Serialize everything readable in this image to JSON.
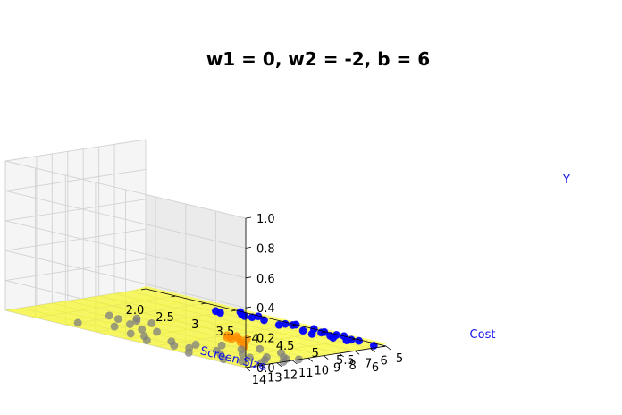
{
  "chart_data": {
    "type": "scatter",
    "subtype": "3d-scatter-with-surface",
    "title": "w1 = 0, w2 = -2, b = 6",
    "xlabel": "Screen Size",
    "ylabel": "Cost",
    "zlabel": "Y",
    "xlim": [
      2.0,
      6.0
    ],
    "ylim": [
      5,
      14
    ],
    "zlim": [
      0.0,
      1.0
    ],
    "x_ticks": [
      "2.0",
      "2.5",
      "3",
      "3.5",
      "4",
      "4.5",
      "5",
      "5.5",
      "6"
    ],
    "y_ticks": [
      "5",
      "6",
      "7",
      "8",
      "9",
      "10",
      "11",
      "12",
      "13",
      "14"
    ],
    "z_ticks": [
      "0.0",
      "0.2",
      "0.4",
      "0.6",
      "0.8",
      "1.0"
    ],
    "grid": true,
    "surface": {
      "model": "sigmoid",
      "w1": 0,
      "w2": -2,
      "b": 6,
      "color": "#ffff00"
    },
    "series": [
      {
        "color": "#0000ff",
        "marker": "circle",
        "points": [
          {
            "x": 3.4,
            "y": 5.9,
            "z": 0
          },
          {
            "x": 3.5,
            "y": 6.0,
            "z": 0
          },
          {
            "x": 3.8,
            "y": 5.6,
            "z": 0
          },
          {
            "x": 3.7,
            "y": 5.4,
            "z": 0
          },
          {
            "x": 3.9,
            "y": 5.5,
            "z": 0
          },
          {
            "x": 3.6,
            "y": 5.1,
            "z": 0
          },
          {
            "x": 3.9,
            "y": 5.1,
            "z": 0
          },
          {
            "x": 4.1,
            "y": 5.5,
            "z": 0
          },
          {
            "x": 4.4,
            "y": 5.3,
            "z": 0
          },
          {
            "x": 4.4,
            "y": 5.7,
            "z": 0
          },
          {
            "x": 4.5,
            "y": 5.0,
            "z": 0
          },
          {
            "x": 4.5,
            "y": 5.2,
            "z": 0
          },
          {
            "x": 4.8,
            "y": 5.7,
            "z": 0
          },
          {
            "x": 4.8,
            "y": 5.0,
            "z": 0
          },
          {
            "x": 5.0,
            "y": 5.3,
            "z": 0
          },
          {
            "x": 5.0,
            "y": 5.9,
            "z": 0
          },
          {
            "x": 5.0,
            "y": 5.1,
            "z": 0
          },
          {
            "x": 5.2,
            "y": 5.1,
            "z": 0
          },
          {
            "x": 5.2,
            "y": 5.5,
            "z": 0
          },
          {
            "x": 5.3,
            "y": 5.7,
            "z": 0
          },
          {
            "x": 5.3,
            "y": 5.0,
            "z": 0
          },
          {
            "x": 5.5,
            "y": 5.6,
            "z": 0
          },
          {
            "x": 5.5,
            "y": 5.3,
            "z": 0
          },
          {
            "x": 5.6,
            "y": 5.2,
            "z": 0
          },
          {
            "x": 5.9,
            "y": 5.4,
            "z": 0
          }
        ]
      },
      {
        "color": "#ff8c00",
        "marker": "circle",
        "points": [
          {
            "x": 4.5,
            "y": 9.4,
            "z": 0
          },
          {
            "x": 4.6,
            "y": 9.6,
            "z": 0
          },
          {
            "x": 4.6,
            "y": 9.2,
            "z": 0
          },
          {
            "x": 4.7,
            "y": 9.5,
            "z": 0
          },
          {
            "x": 4.7,
            "y": 9.9,
            "z": 0
          },
          {
            "x": 4.8,
            "y": 9.3,
            "z": 0
          },
          {
            "x": 4.8,
            "y": 9.7,
            "z": 0
          },
          {
            "x": 4.9,
            "y": 10.1,
            "z": 0
          },
          {
            "x": 5.0,
            "y": 10.3,
            "z": 0
          },
          {
            "x": 5.1,
            "y": 10.6,
            "z": 0
          },
          {
            "x": 4.6,
            "y": 9.8,
            "z": 0
          }
        ]
      },
      {
        "color": "#7f7f7f",
        "marker": "circle",
        "points": [
          {
            "x": 2.9,
            "y": 10.8,
            "z": 0
          },
          {
            "x": 3.1,
            "y": 11.0,
            "z": 0
          },
          {
            "x": 3.2,
            "y": 10.2,
            "z": 0
          },
          {
            "x": 3.3,
            "y": 10.6,
            "z": 0
          },
          {
            "x": 3.4,
            "y": 11.4,
            "z": 0
          },
          {
            "x": 3.5,
            "y": 10.4,
            "z": 0
          },
          {
            "x": 3.4,
            "y": 12.4,
            "z": 0
          },
          {
            "x": 3.7,
            "y": 11.8,
            "z": 0
          },
          {
            "x": 3.8,
            "y": 12.9,
            "z": 0
          },
          {
            "x": 3.9,
            "y": 11.6,
            "z": 0
          },
          {
            "x": 4.0,
            "y": 12.8,
            "z": 0
          },
          {
            "x": 4.2,
            "y": 13.4,
            "z": 0
          },
          {
            "x": 4.4,
            "y": 12.6,
            "z": 0
          },
          {
            "x": 4.6,
            "y": 13.2,
            "z": 0
          },
          {
            "x": 4.7,
            "y": 12.2,
            "z": 0
          },
          {
            "x": 4.8,
            "y": 13.0,
            "z": 0
          },
          {
            "x": 5.0,
            "y": 13.8,
            "z": 0
          },
          {
            "x": 5.1,
            "y": 12.4,
            "z": 0
          },
          {
            "x": 5.2,
            "y": 11.2,
            "z": 0
          },
          {
            "x": 5.3,
            "y": 12.9,
            "z": 0
          },
          {
            "x": 5.4,
            "y": 11.9,
            "z": 0
          },
          {
            "x": 5.5,
            "y": 13.5,
            "z": 0
          },
          {
            "x": 5.6,
            "y": 12.2,
            "z": 0
          },
          {
            "x": 5.7,
            "y": 11.5,
            "z": 0
          },
          {
            "x": 5.7,
            "y": 13.1,
            "z": 0
          },
          {
            "x": 5.8,
            "y": 12.0,
            "z": 0
          },
          {
            "x": 5.8,
            "y": 10.8,
            "z": 0
          },
          {
            "x": 5.9,
            "y": 11.0,
            "z": 0
          },
          {
            "x": 5.9,
            "y": 12.6,
            "z": 0
          },
          {
            "x": 6.0,
            "y": 11.6,
            "z": 0
          },
          {
            "x": 6.0,
            "y": 10.6,
            "z": 0
          },
          {
            "x": 5.6,
            "y": 10.2,
            "z": 0
          },
          {
            "x": 5.3,
            "y": 10.4,
            "z": 0
          },
          {
            "x": 4.9,
            "y": 11.3,
            "z": 0
          },
          {
            "x": 3.0,
            "y": 13.2,
            "z": 0
          }
        ]
      }
    ]
  }
}
